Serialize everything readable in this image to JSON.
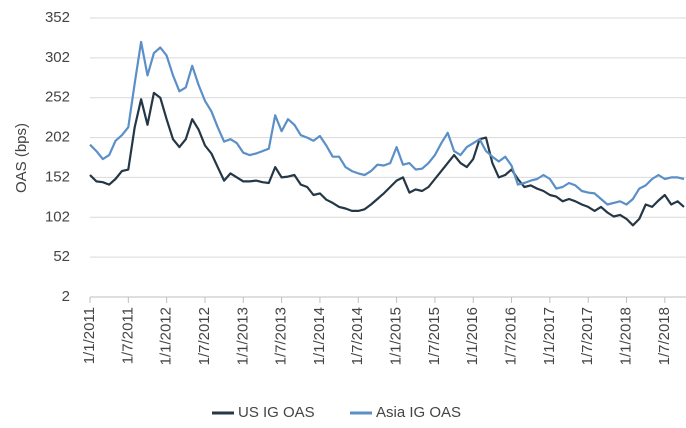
{
  "chart_data": {
    "type": "line",
    "y_label": "OAS (bps)",
    "categories": [
      "1/1/2011",
      null,
      null,
      null,
      null,
      null,
      "1/7/2011",
      null,
      null,
      null,
      null,
      null,
      "1/1/2012",
      null,
      null,
      null,
      null,
      null,
      "1/7/2012",
      null,
      null,
      null,
      null,
      null,
      "1/1/2013",
      null,
      null,
      null,
      null,
      null,
      "1/7/2013",
      null,
      null,
      null,
      null,
      null,
      "1/1/2014",
      null,
      null,
      null,
      null,
      null,
      "1/7/2014",
      null,
      null,
      null,
      null,
      null,
      "1/1/2015",
      null,
      null,
      null,
      null,
      null,
      "1/7/2015",
      null,
      null,
      null,
      null,
      null,
      "1/1/2016",
      null,
      null,
      null,
      null,
      null,
      "1/7/2016",
      null,
      null,
      null,
      null,
      null,
      "1/1/2017",
      null,
      null,
      null,
      null,
      null,
      "1/7/2017",
      null,
      null,
      null,
      null,
      null,
      "1/1/2018",
      null,
      null,
      null,
      null,
      null,
      "1/7/2018",
      null,
      null,
      null
    ],
    "series": [
      {
        "name": "US IG OAS",
        "color": "#243746",
        "values": [
          155,
          147,
          146,
          143,
          150,
          160,
          162,
          215,
          250,
          218,
          258,
          252,
          225,
          200,
          190,
          200,
          225,
          212,
          192,
          182,
          165,
          148,
          157,
          152,
          147,
          147,
          148,
          146,
          145,
          165,
          152,
          153,
          155,
          143,
          140,
          130,
          132,
          124,
          120,
          115,
          113,
          110,
          110,
          112,
          118,
          125,
          132,
          140,
          148,
          152,
          133,
          137,
          135,
          140,
          150,
          160,
          170,
          180,
          170,
          165,
          175,
          200,
          202,
          170,
          152,
          155,
          162,
          150,
          140,
          142,
          138,
          135,
          130,
          128,
          122,
          125,
          122,
          118,
          115,
          110,
          115,
          108,
          103,
          105,
          100,
          92,
          100,
          118,
          115,
          123,
          130,
          118,
          122,
          115
        ]
      },
      {
        "name": "Asia IG OAS",
        "color": "#5b8fc7",
        "values": [
          193,
          185,
          175,
          180,
          198,
          205,
          215,
          270,
          322,
          280,
          308,
          315,
          305,
          280,
          260,
          265,
          292,
          268,
          248,
          235,
          215,
          197,
          200,
          195,
          183,
          180,
          182,
          185,
          188,
          230,
          210,
          225,
          218,
          205,
          202,
          198,
          204,
          192,
          178,
          178,
          165,
          160,
          157,
          155,
          160,
          168,
          167,
          170,
          190,
          168,
          170,
          162,
          163,
          170,
          180,
          195,
          208,
          185,
          180,
          190,
          195,
          200,
          185,
          178,
          172,
          178,
          167,
          143,
          145,
          148,
          150,
          155,
          150,
          138,
          140,
          145,
          142,
          135,
          133,
          132,
          125,
          118,
          120,
          122,
          118,
          125,
          138,
          142,
          150,
          155,
          150,
          152,
          152,
          150
        ]
      }
    ],
    "ylim": [
      2,
      352
    ],
    "yticks": [
      2,
      52,
      102,
      152,
      202,
      252,
      302,
      352
    ],
    "grid": true,
    "legend": "bottom"
  }
}
